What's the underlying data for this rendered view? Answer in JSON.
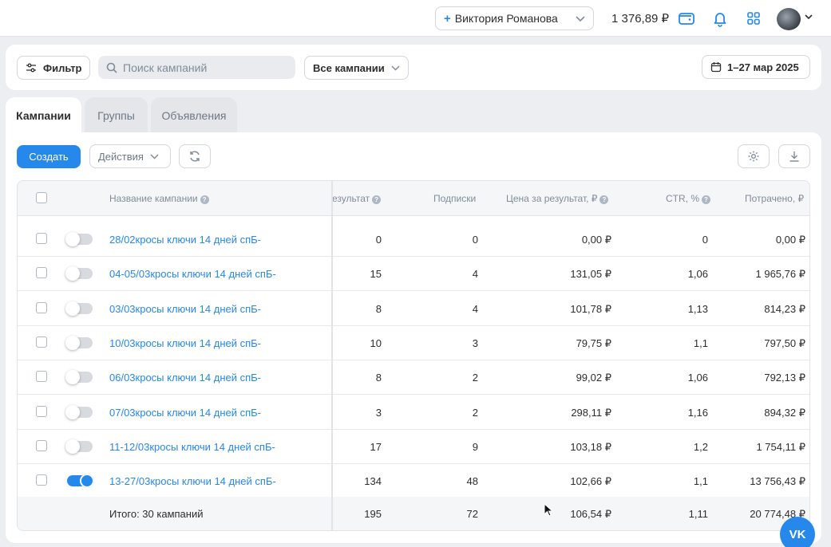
{
  "topbar": {
    "account_name": "Виктория Романова",
    "balance": "1 376,89 ₽"
  },
  "filters": {
    "filter_label": "Фильтр",
    "search_placeholder": "Поиск кампаний",
    "campaigns_select": "Все кампании",
    "date_range": "1–27 мар 2025"
  },
  "tabs": [
    {
      "label": "Кампании",
      "active": true
    },
    {
      "label": "Группы",
      "active": false
    },
    {
      "label": "Объявления",
      "active": false
    }
  ],
  "toolbar": {
    "create_label": "Создать",
    "actions_label": "Действия"
  },
  "table": {
    "headers": {
      "name": "Название кампании",
      "result": "езультат",
      "subs": "Подписки",
      "price": "Цена за результат, ₽",
      "ctr": "CTR, %",
      "spent": "Потрачено, ₽"
    },
    "rows": [
      {
        "name": "28/02кросы ключи 14 дней спБ-",
        "enabled": false,
        "result": "0",
        "subs": "0",
        "price": "0,00 ₽",
        "ctr": "0",
        "spent": "0,00 ₽"
      },
      {
        "name": "04-05/03кросы ключи 14 дней спБ-",
        "enabled": false,
        "result": "15",
        "subs": "4",
        "price": "131,05 ₽",
        "ctr": "1,06",
        "spent": "1 965,76 ₽"
      },
      {
        "name": "03/03кросы ключи 14 дней спБ-",
        "enabled": false,
        "result": "8",
        "subs": "4",
        "price": "101,78 ₽",
        "ctr": "1,13",
        "spent": "814,23 ₽"
      },
      {
        "name": "10/03кросы ключи 14 дней спБ-",
        "enabled": false,
        "result": "10",
        "subs": "3",
        "price": "79,75 ₽",
        "ctr": "1,1",
        "spent": "797,50 ₽"
      },
      {
        "name": "06/03кросы ключи 14 дней спБ-",
        "enabled": false,
        "result": "8",
        "subs": "2",
        "price": "99,02 ₽",
        "ctr": "1,06",
        "spent": "792,13 ₽"
      },
      {
        "name": "07/03кросы ключи 14 дней спБ-",
        "enabled": false,
        "result": "3",
        "subs": "2",
        "price": "298,11 ₽",
        "ctr": "1,16",
        "spent": "894,32 ₽"
      },
      {
        "name": "11-12/03кросы ключи 14 дней спБ-",
        "enabled": false,
        "result": "17",
        "subs": "9",
        "price": "103,18 ₽",
        "ctr": "1,2",
        "spent": "1 754,11 ₽"
      },
      {
        "name": "13-27/03кросы ключи 14 дней спБ-",
        "enabled": true,
        "result": "134",
        "subs": "48",
        "price": "102,66 ₽",
        "ctr": "1,1",
        "spent": "13 756,43 ₽"
      }
    ],
    "total": {
      "label": "Итого: 30 кампаний",
      "result": "195",
      "subs": "72",
      "price": "106,54 ₽",
      "ctr": "1,11",
      "spent": "20 774,48 ₽"
    }
  },
  "vk_label": "VK",
  "colors": {
    "accent": "#2688eb",
    "background": "#eceef1"
  }
}
